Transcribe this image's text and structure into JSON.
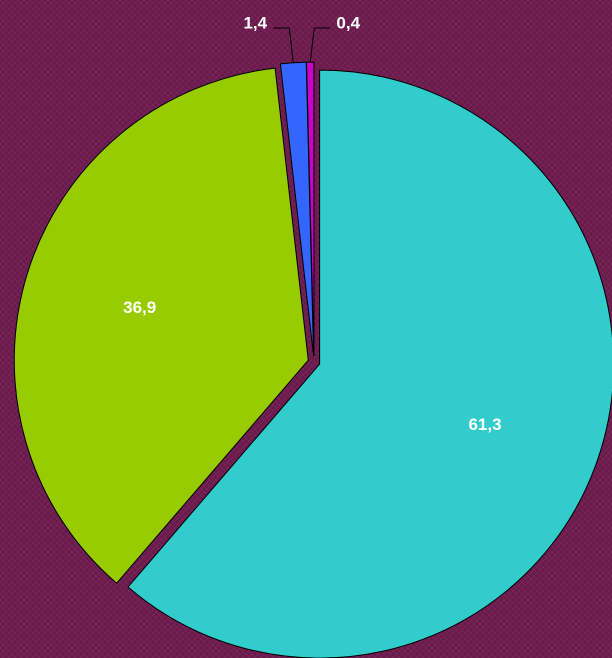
{
  "chart_data": {
    "type": "pie",
    "categories": [
      null,
      null,
      null,
      null
    ],
    "values": [
      61.3,
      36.9,
      1.4,
      0.4
    ],
    "value_labels": [
      "61,3",
      "36,9",
      "1,4",
      "0,4"
    ],
    "colors": [
      "#33cccc",
      "#99cc00",
      "#3366ff",
      "#cc00cc"
    ]
  }
}
